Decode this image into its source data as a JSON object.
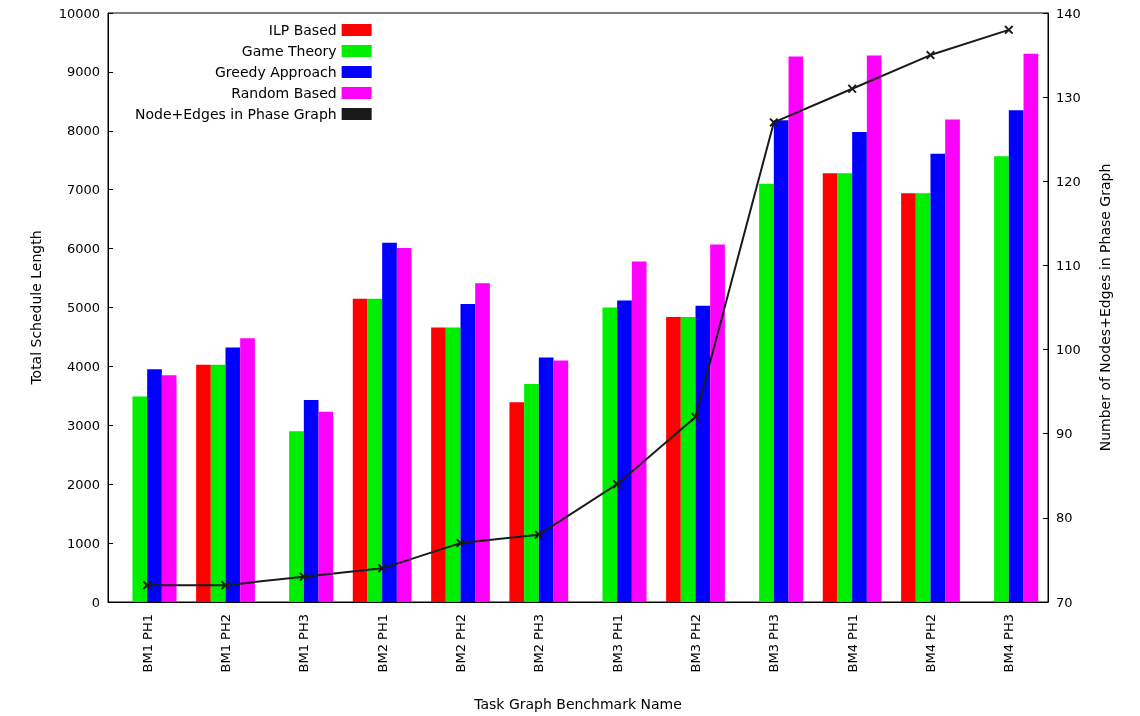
{
  "chart_data": {
    "type": "bar",
    "xlabel": "Task Graph Benchmark Name",
    "ylabel": "Total Schedule Length",
    "y2label": "Number of Nodes+Edges in Phase Graph",
    "categories": [
      "BM1 PH1",
      "BM1 PH2",
      "BM1 PH3",
      "BM2 PH1",
      "BM2 PH2",
      "BM2 PH3",
      "BM3 PH1",
      "BM3 PH2",
      "BM3 PH3",
      "BM4 PH1",
      "BM4 PH2",
      "BM4 PH3"
    ],
    "series": [
      {
        "name": "ILP Based",
        "color": "#ff0000",
        "values": [
          null,
          4030,
          null,
          5150,
          4660,
          3390,
          null,
          4840,
          null,
          7280,
          6940,
          null
        ]
      },
      {
        "name": "Game Theory",
        "color": "#00ee00",
        "values": [
          3490,
          4030,
          2900,
          5150,
          4660,
          3700,
          5000,
          4840,
          7100,
          7280,
          6940,
          7570
        ]
      },
      {
        "name": "Greedy Approach",
        "color": "#0000ff",
        "values": [
          3950,
          4320,
          3430,
          6100,
          5060,
          4150,
          5120,
          5030,
          8180,
          7980,
          7610,
          8350
        ]
      },
      {
        "name": "Random Based",
        "color": "#ff00ff",
        "values": [
          3850,
          4480,
          3230,
          6010,
          5410,
          4100,
          5780,
          6070,
          9260,
          9280,
          8190,
          9310
        ]
      },
      {
        "name": "Node+Edges in Phase Graph",
        "type": "line",
        "axis": "y2",
        "color": "#1a1a1a",
        "marker": "cross",
        "values": [
          72,
          72,
          73,
          74,
          77,
          78,
          84,
          92,
          127,
          131,
          135,
          138
        ]
      }
    ],
    "ylim": [
      0,
      10000
    ],
    "yticks": [
      0,
      1000,
      2000,
      3000,
      4000,
      5000,
      6000,
      7000,
      8000,
      9000,
      10000
    ],
    "y2lim": [
      70,
      140
    ],
    "y2ticks": [
      70,
      80,
      90,
      100,
      110,
      120,
      130,
      140
    ],
    "legend": "top left",
    "grid": false
  }
}
